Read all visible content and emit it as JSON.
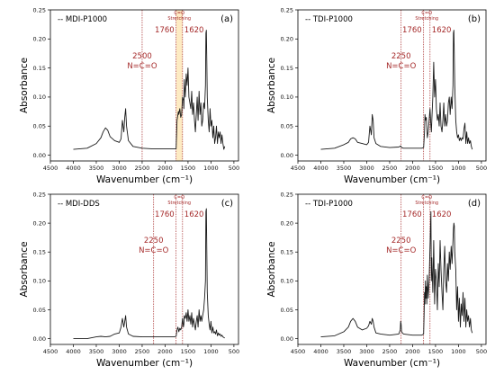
{
  "chart_data": [
    {
      "type": "line",
      "panel_label": "(a)",
      "legend": "-- MDI-P1000",
      "xlabel": "Wavenumber  (cm⁻¹)",
      "ylabel": "Absorbance",
      "x_reversed": true,
      "xlim": [
        4500,
        400
      ],
      "ylim": [
        -0.01,
        0.25
      ],
      "xticks": [
        "4500",
        "4000",
        "3500",
        "3000",
        "2500",
        "2000",
        "1500",
        "1000",
        "500"
      ],
      "yticks": [
        "0.00",
        "0.05",
        "0.10",
        "0.15",
        "0.20",
        "0.25"
      ],
      "ytick_values": [
        0,
        0.05,
        0.1,
        0.15,
        0.2,
        0.25
      ],
      "vlines": [
        {
          "x": 2500,
          "label_lines": [
            "2500",
            "N=C=O"
          ]
        },
        {
          "x": 1760,
          "label_lines": [
            "1760"
          ]
        },
        {
          "x": 1620,
          "label_lines": [
            "1620"
          ]
        }
      ],
      "band": {
        "from": 1760,
        "to": 1620,
        "label_lines": [
          "C=O",
          "Stretching"
        ]
      },
      "series": [
        {
          "x": [
            4000,
            3700,
            3500,
            3400,
            3350,
            3300,
            3250,
            3200,
            3100,
            3000,
            2960,
            2930,
            2900,
            2880,
            2860,
            2840,
            2800,
            2700,
            2500,
            2300,
            2100,
            1900,
            1800,
            1760,
            1740,
            1720,
            1710,
            1700,
            1690,
            1680,
            1660,
            1640,
            1620,
            1600,
            1590,
            1580,
            1560,
            1540,
            1520,
            1500,
            1480,
            1460,
            1440,
            1420,
            1400,
            1380,
            1360,
            1340,
            1320,
            1300,
            1280,
            1260,
            1240,
            1220,
            1200,
            1180,
            1160,
            1140,
            1120,
            1110,
            1100,
            1090,
            1080,
            1060,
            1040,
            1020,
            1000,
            980,
            960,
            940,
            920,
            900,
            880,
            860,
            840,
            820,
            800,
            780,
            760,
            740,
            720,
            700
          ],
          "y": [
            0.01,
            0.012,
            0.02,
            0.03,
            0.04,
            0.047,
            0.043,
            0.032,
            0.025,
            0.022,
            0.028,
            0.06,
            0.04,
            0.065,
            0.08,
            0.05,
            0.025,
            0.015,
            0.012,
            0.011,
            0.011,
            0.011,
            0.011,
            0.011,
            0.06,
            0.07,
            0.075,
            0.07,
            0.075,
            0.08,
            0.065,
            0.07,
            0.1,
            0.095,
            0.08,
            0.13,
            0.1,
            0.14,
            0.12,
            0.15,
            0.1,
            0.09,
            0.08,
            0.11,
            0.07,
            0.09,
            0.06,
            0.04,
            0.07,
            0.1,
            0.06,
            0.11,
            0.07,
            0.09,
            0.05,
            0.06,
            0.09,
            0.08,
            0.12,
            0.21,
            0.215,
            0.16,
            0.1,
            0.06,
            0.04,
            0.08,
            0.05,
            0.06,
            0.03,
            0.05,
            0.02,
            0.03,
            0.05,
            0.02,
            0.04,
            0.03,
            0.04,
            0.02,
            0.035,
            0.02,
            0.01,
            0.015
          ]
        }
      ]
    },
    {
      "type": "line",
      "panel_label": "(b)",
      "legend": "-- TDI-P1000",
      "xlabel": "Wavenumber  (cm⁻¹)",
      "ylabel": "Absorbance",
      "x_reversed": true,
      "xlim": [
        4500,
        400
      ],
      "ylim": [
        -0.01,
        0.25
      ],
      "xticks": [
        "4500",
        "4000",
        "3500",
        "3000",
        "2500",
        "2000",
        "1500",
        "1000",
        "500"
      ],
      "yticks": [
        "0.00",
        "0.05",
        "0.10",
        "0.15",
        "0.20",
        "0.25"
      ],
      "ytick_values": [
        0,
        0.05,
        0.1,
        0.15,
        0.2,
        0.25
      ],
      "vlines": [
        {
          "x": 2250,
          "label_lines": [
            "2250",
            "N=C=O"
          ]
        },
        {
          "x": 1760,
          "label_lines": [
            "1760"
          ]
        },
        {
          "x": 1620,
          "label_lines": [
            "1620"
          ]
        }
      ],
      "band": {
        "from": 1760,
        "to": 1620,
        "label_lines": [
          "C=O",
          "Stretching"
        ],
        "fill": false
      },
      "series": [
        {
          "x": [
            4000,
            3700,
            3500,
            3400,
            3350,
            3300,
            3250,
            3200,
            3100,
            3000,
            2960,
            2930,
            2900,
            2880,
            2860,
            2840,
            2800,
            2700,
            2500,
            2300,
            2260,
            2250,
            2240,
            2200,
            2000,
            1800,
            1760,
            1740,
            1730,
            1720,
            1700,
            1680,
            1660,
            1640,
            1620,
            1600,
            1590,
            1580,
            1560,
            1540,
            1520,
            1500,
            1480,
            1460,
            1440,
            1420,
            1400,
            1380,
            1360,
            1340,
            1320,
            1300,
            1280,
            1260,
            1240,
            1220,
            1200,
            1180,
            1160,
            1140,
            1120,
            1110,
            1100,
            1090,
            1080,
            1060,
            1040,
            1020,
            1000,
            980,
            960,
            940,
            920,
            900,
            880,
            860,
            840,
            820,
            800,
            780,
            760,
            740,
            720,
            700
          ],
          "y": [
            0.01,
            0.012,
            0.018,
            0.022,
            0.028,
            0.03,
            0.028,
            0.022,
            0.02,
            0.018,
            0.022,
            0.05,
            0.035,
            0.07,
            0.06,
            0.03,
            0.02,
            0.015,
            0.013,
            0.014,
            0.016,
            0.014,
            0.013,
            0.012,
            0.012,
            0.012,
            0.013,
            0.04,
            0.07,
            0.06,
            0.065,
            0.03,
            0.04,
            0.06,
            0.08,
            0.05,
            0.04,
            0.06,
            0.1,
            0.16,
            0.1,
            0.13,
            0.08,
            0.06,
            0.07,
            0.05,
            0.09,
            0.05,
            0.04,
            0.06,
            0.09,
            0.05,
            0.07,
            0.05,
            0.06,
            0.09,
            0.1,
            0.07,
            0.1,
            0.08,
            0.12,
            0.21,
            0.215,
            0.17,
            0.12,
            0.06,
            0.04,
            0.03,
            0.035,
            0.025,
            0.03,
            0.025,
            0.03,
            0.028,
            0.045,
            0.055,
            0.02,
            0.04,
            0.02,
            0.03,
            0.02,
            0.025,
            0.015,
            0.01
          ]
        }
      ]
    },
    {
      "type": "line",
      "panel_label": "(c)",
      "legend": "-- MDI-DDS",
      "xlabel": "Wavenumber  (cm⁻¹)",
      "ylabel": "Absorbance",
      "x_reversed": true,
      "xlim": [
        4500,
        400
      ],
      "ylim": [
        -0.01,
        0.25
      ],
      "xticks": [
        "4500",
        "4000",
        "3500",
        "3000",
        "2500",
        "2000",
        "1500",
        "1000",
        "500"
      ],
      "yticks": [
        "0.00",
        "0.05",
        "0.10",
        "0.15",
        "0.20",
        "0.25"
      ],
      "ytick_values": [
        0,
        0.05,
        0.1,
        0.15,
        0.2,
        0.25
      ],
      "vlines": [
        {
          "x": 2250,
          "label_lines": [
            "2250",
            "N=C=O"
          ]
        },
        {
          "x": 1760,
          "label_lines": [
            "1760"
          ]
        },
        {
          "x": 1620,
          "label_lines": [
            "1620"
          ]
        }
      ],
      "band": {
        "from": 1760,
        "to": 1620,
        "label_lines": [
          "C=O",
          "Stretching"
        ],
        "fill": false
      },
      "series": [
        {
          "x": [
            4000,
            3700,
            3500,
            3400,
            3300,
            3200,
            3100,
            3000,
            2960,
            2930,
            2900,
            2880,
            2860,
            2840,
            2800,
            2700,
            2500,
            2300,
            2100,
            1900,
            1800,
            1760,
            1740,
            1720,
            1700,
            1680,
            1660,
            1640,
            1620,
            1600,
            1590,
            1580,
            1560,
            1540,
            1520,
            1500,
            1480,
            1460,
            1440,
            1420,
            1400,
            1380,
            1360,
            1340,
            1320,
            1300,
            1280,
            1260,
            1240,
            1220,
            1200,
            1180,
            1160,
            1140,
            1120,
            1110,
            1100,
            1090,
            1080,
            1060,
            1040,
            1020,
            1000,
            980,
            960,
            940,
            920,
            900,
            880,
            860,
            840,
            820,
            800,
            780,
            760,
            740,
            720,
            700
          ],
          "y": [
            0.0,
            0.0,
            0.003,
            0.004,
            0.003,
            0.004,
            0.008,
            0.01,
            0.02,
            0.035,
            0.02,
            0.03,
            0.04,
            0.02,
            0.008,
            0.004,
            0.003,
            0.003,
            0.003,
            0.003,
            0.003,
            0.004,
            0.015,
            0.02,
            0.012,
            0.018,
            0.015,
            0.02,
            0.035,
            0.02,
            0.025,
            0.04,
            0.035,
            0.045,
            0.03,
            0.05,
            0.03,
            0.04,
            0.025,
            0.045,
            0.02,
            0.035,
            0.025,
            0.015,
            0.03,
            0.04,
            0.02,
            0.05,
            0.03,
            0.04,
            0.03,
            0.04,
            0.05,
            0.07,
            0.1,
            0.22,
            0.225,
            0.15,
            0.08,
            0.04,
            0.025,
            0.015,
            0.03,
            0.01,
            0.02,
            0.01,
            0.012,
            0.008,
            0.015,
            0.005,
            0.01,
            0.006,
            0.008,
            0.004,
            0.006,
            0.003,
            0.002,
            0.001
          ]
        }
      ]
    },
    {
      "type": "line",
      "panel_label": "(d)",
      "legend": "-- TDI-P1000",
      "xlabel": "Wavenumber  (cm⁻¹)",
      "ylabel": "Absorbance",
      "x_reversed": true,
      "xlim": [
        4500,
        400
      ],
      "ylim": [
        -0.01,
        0.25
      ],
      "xticks": [
        "4500",
        "4000",
        "3500",
        "3000",
        "2500",
        "2000",
        "1500",
        "1000",
        "500"
      ],
      "yticks": [
        "0.00",
        "0.05",
        "0.10",
        "0.15",
        "0.20",
        "0.25"
      ],
      "ytick_values": [
        0,
        0.05,
        0.1,
        0.15,
        0.2,
        0.25
      ],
      "vlines": [
        {
          "x": 2250,
          "label_lines": [
            "2250",
            "N=C=O"
          ]
        },
        {
          "x": 1760,
          "label_lines": [
            "1760"
          ]
        },
        {
          "x": 1620,
          "label_lines": [
            "1620"
          ]
        }
      ],
      "band": {
        "from": 1760,
        "to": 1620,
        "label_lines": [
          "C=O",
          "Stretching"
        ],
        "fill": false
      },
      "series": [
        {
          "x": [
            4000,
            3700,
            3500,
            3400,
            3350,
            3300,
            3250,
            3200,
            3100,
            3000,
            2960,
            2930,
            2900,
            2880,
            2860,
            2840,
            2800,
            2700,
            2500,
            2300,
            2270,
            2260,
            2250,
            2240,
            2200,
            2000,
            1800,
            1760,
            1750,
            1740,
            1730,
            1720,
            1710,
            1700,
            1690,
            1680,
            1660,
            1640,
            1620,
            1600,
            1590,
            1580,
            1560,
            1540,
            1520,
            1500,
            1480,
            1460,
            1440,
            1420,
            1400,
            1380,
            1360,
            1340,
            1320,
            1300,
            1280,
            1260,
            1240,
            1220,
            1200,
            1180,
            1160,
            1140,
            1120,
            1110,
            1100,
            1090,
            1080,
            1060,
            1040,
            1020,
            1000,
            980,
            960,
            940,
            920,
            900,
            880,
            860,
            840,
            820,
            800,
            780,
            760,
            740,
            720,
            700
          ],
          "y": [
            0.003,
            0.005,
            0.012,
            0.02,
            0.03,
            0.035,
            0.03,
            0.02,
            0.015,
            0.018,
            0.022,
            0.03,
            0.025,
            0.035,
            0.03,
            0.02,
            0.01,
            0.008,
            0.006,
            0.008,
            0.015,
            0.03,
            0.025,
            0.012,
            0.008,
            0.006,
            0.006,
            0.008,
            0.04,
            0.08,
            0.06,
            0.1,
            0.07,
            0.09,
            0.06,
            0.11,
            0.07,
            0.1,
            0.16,
            0.22,
            0.1,
            0.14,
            0.08,
            0.17,
            0.06,
            0.12,
            0.1,
            0.05,
            0.13,
            0.09,
            0.17,
            0.12,
            0.08,
            0.05,
            0.12,
            0.16,
            0.1,
            0.08,
            0.13,
            0.1,
            0.15,
            0.12,
            0.16,
            0.13,
            0.17,
            0.19,
            0.2,
            0.195,
            0.15,
            0.12,
            0.05,
            0.09,
            0.03,
            0.07,
            0.02,
            0.06,
            0.04,
            0.08,
            0.03,
            0.07,
            0.02,
            0.05,
            0.03,
            0.04,
            0.02,
            0.035,
            0.015,
            0.01
          ]
        }
      ]
    }
  ]
}
